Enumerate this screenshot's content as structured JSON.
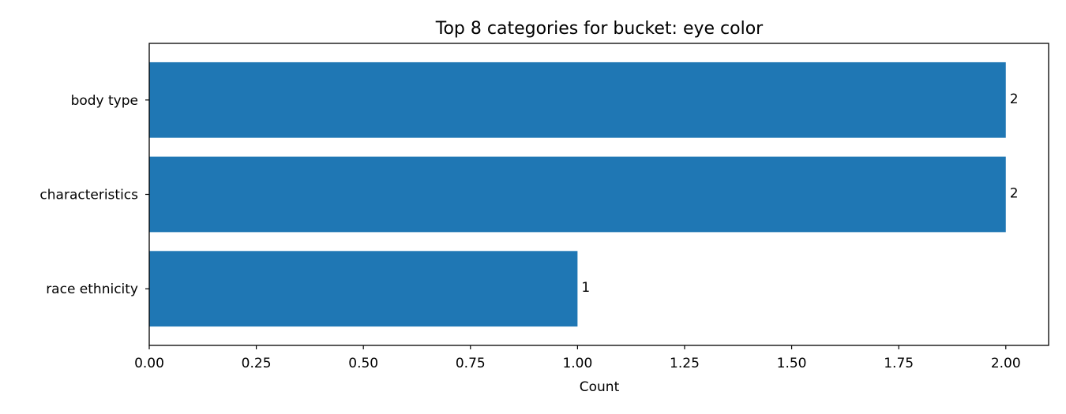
{
  "chart_data": {
    "type": "bar",
    "orientation": "horizontal",
    "title": "Top 8 categories for bucket: eye color",
    "xlabel": "Count",
    "ylabel": "",
    "categories": [
      "body type",
      "characteristics",
      "race ethnicity"
    ],
    "values": [
      2,
      2,
      1
    ],
    "xlim": [
      0,
      2.1
    ],
    "x_ticks": [
      "0.00",
      "0.25",
      "0.50",
      "0.75",
      "1.00",
      "1.25",
      "1.50",
      "1.75",
      "2.00"
    ],
    "x_tick_values": [
      0,
      0.25,
      0.5,
      0.75,
      1.0,
      1.25,
      1.5,
      1.75,
      2.0
    ],
    "data_labels": [
      "2",
      "2",
      "1"
    ],
    "grid": false,
    "legend": "none",
    "bar_color": "#1f77b4"
  }
}
